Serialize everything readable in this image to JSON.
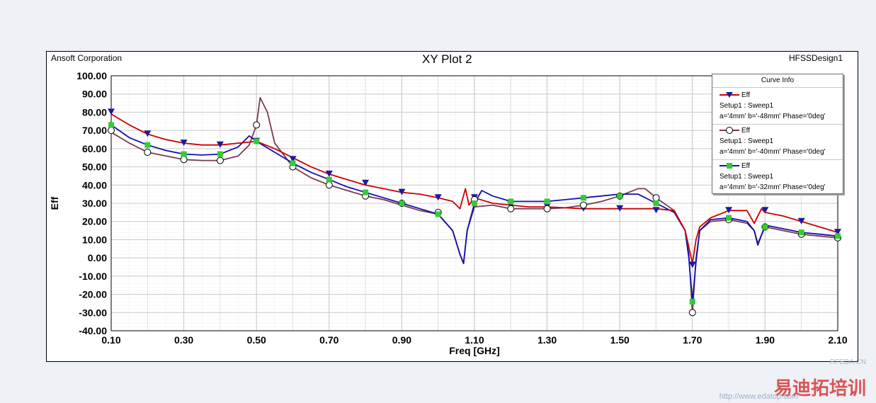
{
  "header": {
    "left": "Ansoft Corporation",
    "title": "XY Plot 2",
    "right": "HFSSDesign1"
  },
  "legend": {
    "title": "Curve Info",
    "entries": [
      {
        "name": "Eff",
        "setup": "Setup1 : Sweep1",
        "vars": "a='4mm' b='-48mm' Phase='0deg'",
        "color": "#cc0000",
        "marker": "triangle-down",
        "marker_color": "#1a1aa0"
      },
      {
        "name": "Eff",
        "setup": "Setup1 : Sweep1",
        "vars": "a='4mm' b='-40mm' Phase='0deg'",
        "color": "#7a3a50",
        "marker": "circle-open",
        "marker_color": "#000000"
      },
      {
        "name": "Eff",
        "setup": "Setup1 : Sweep1",
        "vars": "a='4mm' b='-32mm' Phase='0deg'",
        "color": "#1010b0",
        "marker": "square",
        "marker_color": "#33cc33"
      }
    ]
  },
  "watermark": {
    "brand": "易迪拓培训",
    "url": "http://www.edatop.com",
    "logo": "RFEDA.CN"
  },
  "chart_data": {
    "type": "line",
    "title": "XY Plot 2",
    "xlabel": "Freq [GHz]",
    "ylabel": "Eff",
    "xlim": [
      0.1,
      2.1
    ],
    "ylim": [
      -40,
      100
    ],
    "xticks": [
      0.1,
      0.3,
      0.5,
      0.7,
      0.9,
      1.1,
      1.3,
      1.5,
      1.7,
      1.9,
      2.1
    ],
    "xtick_labels": [
      "0.10",
      "0.30",
      "0.50",
      "0.70",
      "0.90",
      "1.10",
      "1.30",
      "1.50",
      "1.70",
      "1.90",
      "2.10"
    ],
    "yticks": [
      -40,
      -30,
      -20,
      -10,
      0,
      10,
      20,
      30,
      40,
      50,
      60,
      70,
      80,
      90,
      100
    ],
    "ytick_labels": [
      "-40.00",
      "-30.00",
      "-20.00",
      "-10.00",
      "0.00",
      "10.00",
      "20.00",
      "30.00",
      "40.00",
      "50.00",
      "60.00",
      "70.00",
      "80.00",
      "90.00",
      "100.00"
    ],
    "grid": true,
    "legend_position": "top-right",
    "series": [
      {
        "name": "Eff",
        "label": "Setup1 : Sweep1 a='4mm' b='-48mm' Phase='0deg'",
        "color": "#cc0000",
        "marker": "triangle-down",
        "marker_color": "#1a1aa0",
        "x": [
          0.1,
          0.15,
          0.2,
          0.25,
          0.3,
          0.35,
          0.4,
          0.45,
          0.5,
          0.55,
          0.6,
          0.65,
          0.7,
          0.75,
          0.8,
          0.85,
          0.9,
          0.95,
          1.0,
          1.04,
          1.06,
          1.075,
          1.085,
          1.1,
          1.15,
          1.2,
          1.25,
          1.3,
          1.35,
          1.4,
          1.45,
          1.5,
          1.55,
          1.6,
          1.65,
          1.68,
          1.69,
          1.7,
          1.71,
          1.72,
          1.75,
          1.8,
          1.85,
          1.87,
          1.89,
          1.9,
          1.95,
          2.0,
          2.05,
          2.1
        ],
        "y": [
          79,
          73,
          68,
          65,
          63,
          62,
          62,
          63,
          64,
          60,
          55,
          50,
          46,
          43,
          40,
          38,
          36,
          35,
          33,
          31,
          27,
          38,
          29,
          33,
          30,
          29,
          28,
          28,
          27.5,
          27,
          27,
          27,
          27,
          27,
          26,
          15,
          6,
          -3,
          10,
          17,
          22,
          26,
          26,
          19,
          27,
          25,
          23,
          20,
          17,
          14
        ]
      },
      {
        "name": "Eff",
        "label": "Setup1 : Sweep1 a='4mm' b='-40mm' Phase='0deg'",
        "color": "#7a3a50",
        "marker": "circle-open",
        "marker_color": "#000000",
        "x": [
          0.1,
          0.15,
          0.2,
          0.25,
          0.3,
          0.35,
          0.4,
          0.45,
          0.48,
          0.5,
          0.51,
          0.53,
          0.55,
          0.6,
          0.65,
          0.7,
          0.75,
          0.8,
          0.85,
          0.9,
          0.95,
          1.0,
          1.04,
          1.06,
          1.07,
          1.08,
          1.1,
          1.15,
          1.2,
          1.25,
          1.3,
          1.35,
          1.4,
          1.45,
          1.5,
          1.55,
          1.57,
          1.6,
          1.65,
          1.68,
          1.69,
          1.7,
          1.71,
          1.72,
          1.75,
          1.8,
          1.85,
          1.87,
          1.88,
          1.9,
          1.95,
          2.0,
          2.05,
          2.1
        ],
        "y": [
          69,
          63,
          58,
          56,
          54,
          53.5,
          53.5,
          56,
          62,
          73,
          88,
          80,
          63,
          50,
          44,
          40,
          37,
          34,
          32,
          29,
          26,
          24,
          15,
          2,
          -3,
          15,
          28,
          29,
          27,
          27,
          27,
          27.5,
          29,
          31,
          34,
          38,
          38,
          33,
          26,
          15,
          2,
          -30,
          0,
          15,
          20,
          21,
          19,
          15,
          8,
          17,
          15,
          13,
          12,
          11
        ]
      },
      {
        "name": "Eff",
        "label": "Setup1 : Sweep1 a='4mm' b='-32mm' Phase='0deg'",
        "color": "#1010b0",
        "marker": "square",
        "marker_color": "#33cc33",
        "x": [
          0.1,
          0.15,
          0.2,
          0.25,
          0.3,
          0.35,
          0.4,
          0.45,
          0.48,
          0.5,
          0.55,
          0.6,
          0.65,
          0.7,
          0.75,
          0.8,
          0.85,
          0.9,
          0.95,
          1.0,
          1.04,
          1.06,
          1.07,
          1.08,
          1.1,
          1.12,
          1.15,
          1.2,
          1.25,
          1.3,
          1.35,
          1.4,
          1.45,
          1.5,
          1.55,
          1.6,
          1.65,
          1.68,
          1.69,
          1.7,
          1.71,
          1.72,
          1.75,
          1.8,
          1.85,
          1.87,
          1.88,
          1.9,
          1.95,
          2.0,
          2.05,
          2.1
        ],
        "y": [
          73,
          66,
          62,
          59,
          57,
          56.5,
          57,
          61,
          67,
          64,
          58,
          52,
          47,
          43,
          39,
          36,
          33,
          30,
          27,
          24,
          15,
          2,
          -3,
          15,
          30,
          37,
          34,
          31,
          31,
          31,
          32,
          33,
          34,
          35,
          35,
          30,
          25,
          15,
          0,
          -24,
          -2,
          15,
          21,
          22,
          20,
          15,
          7,
          18,
          16,
          14,
          13,
          12
        ]
      }
    ],
    "marker_points": [
      {
        "series": 0,
        "x": [
          0.1,
          0.2,
          0.3,
          0.4,
          0.5,
          0.6,
          0.7,
          0.8,
          0.9,
          1.0,
          1.1,
          1.2,
          1.3,
          1.4,
          1.5,
          1.6,
          1.7,
          1.8,
          1.9,
          2.0,
          2.1
        ],
        "y": [
          80,
          68,
          63,
          62,
          64,
          54,
          46,
          41,
          36,
          33,
          33,
          29,
          28,
          27,
          27,
          26,
          -4,
          26,
          26,
          20,
          14
        ]
      },
      {
        "series": 1,
        "x": [
          0.1,
          0.2,
          0.3,
          0.4,
          0.5,
          0.6,
          0.7,
          0.8,
          0.9,
          1.0,
          1.1,
          1.2,
          1.3,
          1.4,
          1.5,
          1.6,
          1.7,
          1.8,
          1.9,
          2.0,
          2.1
        ],
        "y": [
          70,
          58,
          54,
          53.5,
          73,
          50,
          40,
          34,
          30,
          25,
          32,
          27,
          27,
          29,
          34,
          33,
          -30,
          21,
          17,
          13,
          11
        ]
      },
      {
        "series": 2,
        "x": [
          0.1,
          0.2,
          0.3,
          0.4,
          0.5,
          0.6,
          0.7,
          0.8,
          0.9,
          1.0,
          1.1,
          1.2,
          1.3,
          1.4,
          1.5,
          1.6,
          1.7,
          1.8,
          1.9,
          2.0,
          2.1
        ],
        "y": [
          73,
          62,
          57,
          57,
          64,
          52,
          43,
          36,
          30,
          24,
          30,
          31,
          31,
          33,
          34,
          30,
          -24,
          22,
          17,
          14,
          12
        ]
      }
    ]
  }
}
